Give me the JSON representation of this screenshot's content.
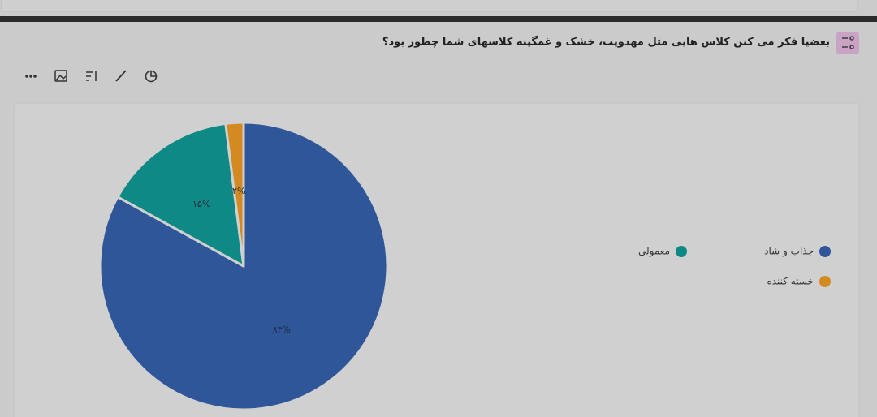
{
  "chart_data": {
    "type": "pie",
    "title": "بعضیا فکر می کنن کلاس هایی مثل مهدویت، خشک و غمگینه کلاسهای شما چطور بود؟",
    "categories": [
      "جذاب و شاد",
      "معمولی",
      "خسته کننده"
    ],
    "values": [
      83,
      15,
      2
    ],
    "value_labels": [
      "۸۳%",
      "۱۵%",
      "۲%"
    ],
    "colors": [
      "#30569a",
      "#0f8985",
      "#d38a20"
    ]
  }
}
